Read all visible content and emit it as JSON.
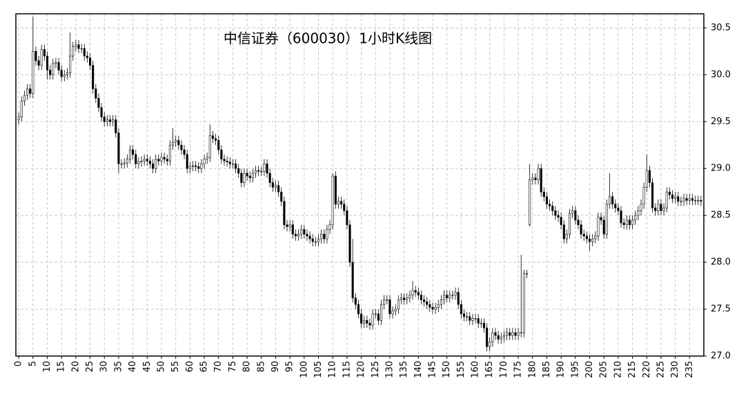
{
  "chart_data": {
    "type": "candlestick",
    "title": "中信证券（600030）1小时K线图",
    "up_color": "#ffffff",
    "down_color": "#000000",
    "edge_color": "#000000",
    "grid": true,
    "xlim": [
      -1,
      240
    ],
    "ylim": [
      27.0,
      30.65
    ],
    "xticks": [
      0,
      5,
      10,
      15,
      20,
      25,
      30,
      35,
      40,
      45,
      50,
      55,
      60,
      65,
      70,
      75,
      80,
      85,
      90,
      95,
      100,
      105,
      110,
      115,
      120,
      125,
      130,
      135,
      140,
      145,
      150,
      155,
      160,
      165,
      170,
      175,
      180,
      185,
      190,
      195,
      200,
      205,
      210,
      215,
      220,
      225,
      230,
      235
    ],
    "yticks": [
      {
        "value": 27,
        "label": "27.0"
      },
      27.5,
      {
        "value": 28,
        "label": "28.0"
      },
      28.5,
      {
        "value": 29,
        "label": "29.0"
      },
      29.5,
      {
        "value": 30,
        "label": "30.0"
      },
      30.5
    ],
    "open": [
      29.52,
      29.55,
      29.72,
      29.78,
      29.85,
      29.8,
      30.25,
      30.15,
      30.1,
      30.27,
      30.2,
      30.05,
      30.0,
      30.12,
      30.13,
      30.05,
      29.98,
      30.0,
      30.02,
      30.2,
      30.3,
      30.32,
      30.28,
      30.28,
      30.2,
      30.18,
      30.1,
      29.85,
      29.75,
      29.65,
      29.55,
      29.5,
      29.52,
      29.5,
      29.52,
      29.38,
      29.05,
      29.05,
      29.06,
      29.1,
      29.2,
      29.15,
      29.05,
      29.07,
      29.08,
      29.1,
      29.08,
      29.05,
      29.0,
      29.1,
      29.08,
      29.12,
      29.1,
      29.08,
      29.25,
      29.28,
      29.3,
      29.25,
      29.2,
      29.15,
      29.0,
      29.02,
      29.03,
      29.02,
      29.0,
      29.05,
      29.1,
      29.12,
      29.35,
      29.32,
      29.3,
      29.2,
      29.1,
      29.08,
      29.07,
      29.05,
      29.05,
      29.0,
      28.95,
      28.85,
      28.95,
      28.92,
      28.9,
      28.95,
      28.98,
      28.97,
      28.97,
      29.05,
      28.95,
      28.85,
      28.8,
      28.82,
      28.75,
      28.65,
      28.4,
      28.38,
      28.4,
      28.3,
      28.28,
      28.3,
      28.35,
      28.3,
      28.28,
      28.25,
      28.22,
      28.22,
      28.25,
      28.3,
      28.25,
      28.35,
      28.4,
      28.92,
      28.62,
      28.65,
      28.62,
      28.55,
      28.4,
      28.0,
      27.62,
      27.55,
      27.45,
      27.35,
      27.38,
      27.35,
      27.33,
      27.45,
      27.45,
      27.38,
      27.55,
      27.6,
      27.6,
      27.45,
      27.48,
      27.5,
      27.6,
      27.62,
      27.6,
      27.62,
      27.65,
      27.7,
      27.68,
      27.65,
      27.6,
      27.58,
      27.55,
      27.52,
      27.5,
      27.52,
      27.55,
      27.6,
      27.65,
      27.62,
      27.65,
      27.65,
      27.68,
      27.55,
      27.45,
      27.42,
      27.42,
      27.38,
      27.4,
      27.4,
      27.35,
      27.35,
      27.3,
      27.1,
      27.15,
      27.25,
      27.22,
      27.18,
      27.2,
      27.22,
      27.25,
      27.22,
      27.25,
      27.22,
      27.25,
      27.25,
      27.88,
      28.4,
      28.88,
      28.9,
      28.88,
      29.0,
      28.75,
      28.7,
      28.62,
      28.6,
      28.55,
      28.5,
      28.48,
      28.4,
      28.25,
      28.3,
      28.52,
      28.55,
      28.45,
      28.4,
      28.3,
      28.28,
      28.25,
      28.22,
      28.25,
      28.28,
      28.48,
      28.45,
      28.3,
      28.62,
      28.7,
      28.62,
      28.58,
      28.55,
      28.42,
      28.4,
      28.45,
      28.4,
      28.45,
      28.5,
      28.55,
      28.62,
      28.8,
      28.98,
      28.85,
      28.58,
      28.55,
      28.62,
      28.55,
      28.58,
      28.75,
      28.72,
      28.68,
      28.7,
      28.65,
      28.65,
      28.68,
      28.66,
      28.68,
      28.66,
      28.66,
      28.66
    ],
    "high": [
      29.6,
      29.77,
      29.83,
      29.9,
      29.9,
      30.62,
      30.3,
      30.2,
      30.32,
      30.32,
      30.25,
      30.1,
      30.17,
      30.18,
      30.18,
      30.1,
      30.05,
      30.07,
      30.45,
      30.35,
      30.37,
      30.37,
      30.33,
      30.33,
      30.25,
      30.23,
      30.15,
      29.9,
      29.8,
      29.7,
      29.6,
      29.57,
      29.57,
      29.57,
      29.57,
      29.43,
      29.1,
      29.11,
      29.15,
      29.25,
      29.25,
      29.2,
      29.12,
      29.13,
      29.15,
      29.15,
      29.13,
      29.1,
      29.15,
      29.15,
      29.17,
      29.17,
      29.15,
      29.3,
      29.43,
      29.35,
      29.35,
      29.3,
      29.25,
      29.2,
      29.07,
      29.08,
      29.08,
      29.07,
      29.1,
      29.15,
      29.17,
      29.47,
      29.4,
      29.37,
      29.35,
      29.25,
      29.15,
      29.13,
      29.12,
      29.1,
      29.1,
      29.05,
      29.0,
      29.0,
      29.0,
      28.97,
      29.0,
      29.03,
      29.03,
      29.02,
      29.1,
      29.1,
      29.0,
      28.9,
      28.87,
      28.87,
      28.8,
      28.7,
      28.45,
      28.45,
      28.45,
      28.35,
      28.35,
      28.4,
      28.4,
      28.35,
      28.33,
      28.3,
      28.27,
      28.3,
      28.35,
      28.35,
      28.4,
      28.45,
      28.95,
      28.97,
      28.7,
      28.7,
      28.67,
      28.6,
      28.45,
      28.25,
      27.67,
      27.6,
      27.5,
      27.43,
      27.43,
      27.4,
      27.5,
      27.5,
      27.5,
      27.6,
      27.65,
      27.65,
      27.65,
      27.53,
      27.55,
      27.65,
      27.67,
      27.67,
      27.67,
      27.7,
      27.8,
      27.75,
      27.73,
      27.7,
      27.65,
      27.63,
      27.6,
      27.57,
      27.57,
      27.6,
      27.65,
      27.7,
      27.7,
      27.7,
      27.7,
      27.73,
      27.73,
      27.6,
      27.5,
      27.47,
      27.47,
      27.45,
      27.45,
      27.45,
      27.4,
      27.4,
      27.35,
      27.2,
      27.3,
      27.3,
      27.27,
      27.25,
      27.27,
      27.3,
      27.3,
      27.3,
      27.3,
      27.3,
      28.08,
      27.92,
      27.92,
      29.05,
      28.95,
      28.95,
      29.05,
      29.05,
      28.8,
      28.75,
      28.67,
      28.65,
      28.6,
      28.55,
      28.53,
      28.45,
      28.35,
      28.57,
      28.6,
      28.6,
      28.5,
      28.45,
      28.35,
      28.33,
      28.3,
      28.3,
      28.33,
      28.53,
      28.53,
      28.5,
      28.67,
      28.95,
      28.75,
      28.67,
      28.63,
      28.6,
      28.47,
      28.5,
      28.5,
      28.5,
      28.55,
      28.6,
      28.67,
      28.85,
      29.15,
      29.03,
      28.9,
      28.63,
      28.67,
      28.67,
      28.63,
      28.8,
      28.8,
      28.77,
      28.75,
      28.75,
      28.7,
      28.73,
      28.73,
      28.73,
      28.73,
      28.71,
      28.71,
      28.71
    ],
    "low": [
      29.47,
      29.5,
      29.67,
      29.73,
      29.75,
      29.75,
      30.1,
      30.05,
      30.05,
      30.15,
      29.95,
      29.95,
      29.95,
      30.07,
      30.0,
      29.93,
      29.93,
      29.95,
      29.97,
      30.15,
      30.25,
      30.23,
      30.23,
      30.15,
      30.13,
      30.05,
      29.8,
      29.7,
      29.6,
      29.5,
      29.45,
      29.45,
      29.45,
      29.45,
      29.33,
      28.95,
      29.0,
      29.0,
      29.01,
      29.05,
      29.1,
      29.0,
      29.0,
      29.02,
      29.03,
      29.03,
      29.0,
      28.95,
      28.95,
      29.03,
      29.03,
      29.05,
      29.03,
      29.03,
      29.2,
      29.23,
      29.2,
      29.15,
      29.1,
      28.95,
      28.95,
      28.97,
      28.97,
      28.95,
      28.95,
      29.0,
      29.05,
      29.07,
      29.27,
      29.25,
      29.15,
      29.05,
      29.03,
      29.02,
      29.0,
      29.0,
      28.95,
      28.9,
      28.8,
      28.8,
      28.87,
      28.85,
      28.85,
      28.9,
      28.92,
      28.92,
      28.92,
      28.9,
      28.8,
      28.75,
      28.75,
      28.7,
      28.6,
      28.35,
      28.33,
      28.33,
      28.25,
      28.23,
      28.23,
      28.25,
      28.25,
      28.23,
      28.2,
      28.17,
      28.17,
      28.17,
      28.2,
      28.2,
      28.2,
      28.3,
      28.35,
      28.57,
      28.57,
      28.57,
      28.5,
      28.35,
      27.95,
      27.57,
      27.5,
      27.4,
      27.3,
      27.3,
      27.3,
      27.28,
      27.28,
      27.4,
      27.33,
      27.33,
      27.5,
      27.55,
      27.4,
      27.4,
      27.43,
      27.45,
      27.55,
      27.55,
      27.55,
      27.57,
      27.6,
      27.63,
      27.6,
      27.55,
      27.53,
      27.5,
      27.47,
      27.45,
      27.45,
      27.47,
      27.5,
      27.55,
      27.57,
      27.57,
      27.6,
      27.6,
      27.5,
      27.4,
      27.37,
      27.37,
      27.33,
      27.33,
      27.35,
      27.3,
      27.3,
      27.25,
      27.05,
      27.05,
      27.1,
      27.17,
      27.13,
      27.13,
      27.15,
      27.17,
      27.17,
      27.17,
      27.17,
      27.17,
      27.2,
      27.2,
      27.83,
      28.38,
      28.83,
      28.83,
      28.83,
      28.7,
      28.65,
      28.57,
      28.55,
      28.5,
      28.45,
      28.43,
      28.35,
      28.2,
      28.2,
      28.25,
      28.47,
      28.4,
      28.35,
      28.25,
      28.23,
      28.2,
      28.12,
      28.17,
      28.2,
      28.23,
      28.4,
      28.25,
      28.25,
      28.57,
      28.57,
      28.53,
      28.5,
      28.37,
      28.35,
      28.35,
      28.35,
      28.35,
      28.4,
      28.45,
      28.5,
      28.57,
      28.75,
      28.8,
      28.53,
      28.5,
      28.5,
      28.5,
      28.5,
      28.53,
      28.67,
      28.63,
      28.63,
      28.6,
      28.6,
      28.6,
      28.61,
      28.61,
      28.61,
      28.61,
      28.61,
      28.6
    ],
    "close": [
      29.55,
      29.72,
      29.78,
      29.85,
      29.8,
      30.25,
      30.15,
      30.1,
      30.27,
      30.2,
      30.05,
      30.0,
      30.12,
      30.13,
      30.05,
      29.98,
      30.0,
      30.02,
      30.2,
      30.3,
      30.32,
      30.28,
      30.28,
      30.2,
      30.18,
      30.1,
      29.85,
      29.75,
      29.65,
      29.55,
      29.5,
      29.52,
      29.5,
      29.52,
      29.38,
      29.05,
      29.05,
      29.06,
      29.1,
      29.2,
      29.15,
      29.05,
      29.07,
      29.08,
      29.1,
      29.08,
      29.05,
      29.0,
      29.1,
      29.08,
      29.12,
      29.1,
      29.08,
      29.25,
      29.28,
      29.3,
      29.25,
      29.2,
      29.15,
      29.0,
      29.02,
      29.03,
      29.02,
      29.0,
      29.05,
      29.1,
      29.12,
      29.35,
      29.32,
      29.3,
      29.2,
      29.1,
      29.08,
      29.07,
      29.05,
      29.05,
      29.0,
      28.95,
      28.85,
      28.95,
      28.92,
      28.9,
      28.95,
      28.98,
      28.97,
      28.97,
      29.05,
      28.95,
      28.85,
      28.8,
      28.82,
      28.75,
      28.65,
      28.4,
      28.38,
      28.4,
      28.3,
      28.28,
      28.3,
      28.35,
      28.3,
      28.28,
      28.25,
      28.22,
      28.22,
      28.25,
      28.3,
      28.25,
      28.35,
      28.4,
      28.92,
      28.62,
      28.65,
      28.62,
      28.55,
      28.4,
      28.0,
      27.62,
      27.55,
      27.45,
      27.35,
      27.38,
      27.35,
      27.33,
      27.45,
      27.45,
      27.38,
      27.55,
      27.6,
      27.6,
      27.45,
      27.48,
      27.5,
      27.6,
      27.62,
      27.6,
      27.62,
      27.65,
      27.7,
      27.68,
      27.65,
      27.6,
      27.58,
      27.55,
      27.52,
      27.5,
      27.52,
      27.55,
      27.6,
      27.65,
      27.62,
      27.65,
      27.65,
      27.68,
      27.55,
      27.45,
      27.42,
      27.42,
      27.38,
      27.4,
      27.4,
      27.35,
      27.35,
      27.3,
      27.1,
      27.15,
      27.25,
      27.22,
      27.18,
      27.2,
      27.22,
      27.25,
      27.22,
      27.25,
      27.22,
      27.25,
      27.25,
      27.88,
      27.88,
      28.88,
      28.9,
      28.88,
      29.0,
      28.75,
      28.7,
      28.62,
      28.6,
      28.55,
      28.5,
      28.48,
      28.4,
      28.25,
      28.3,
      28.52,
      28.55,
      28.45,
      28.4,
      28.3,
      28.28,
      28.25,
      28.22,
      28.25,
      28.28,
      28.48,
      28.45,
      28.3,
      28.62,
      28.7,
      28.62,
      28.58,
      28.55,
      28.42,
      28.4,
      28.45,
      28.4,
      28.45,
      28.5,
      28.55,
      28.62,
      28.8,
      28.98,
      28.85,
      28.58,
      28.55,
      28.62,
      28.55,
      28.58,
      28.75,
      28.72,
      28.68,
      28.7,
      28.65,
      28.65,
      28.68,
      28.66,
      28.68,
      28.66,
      28.66,
      28.66,
      28.65
    ]
  }
}
